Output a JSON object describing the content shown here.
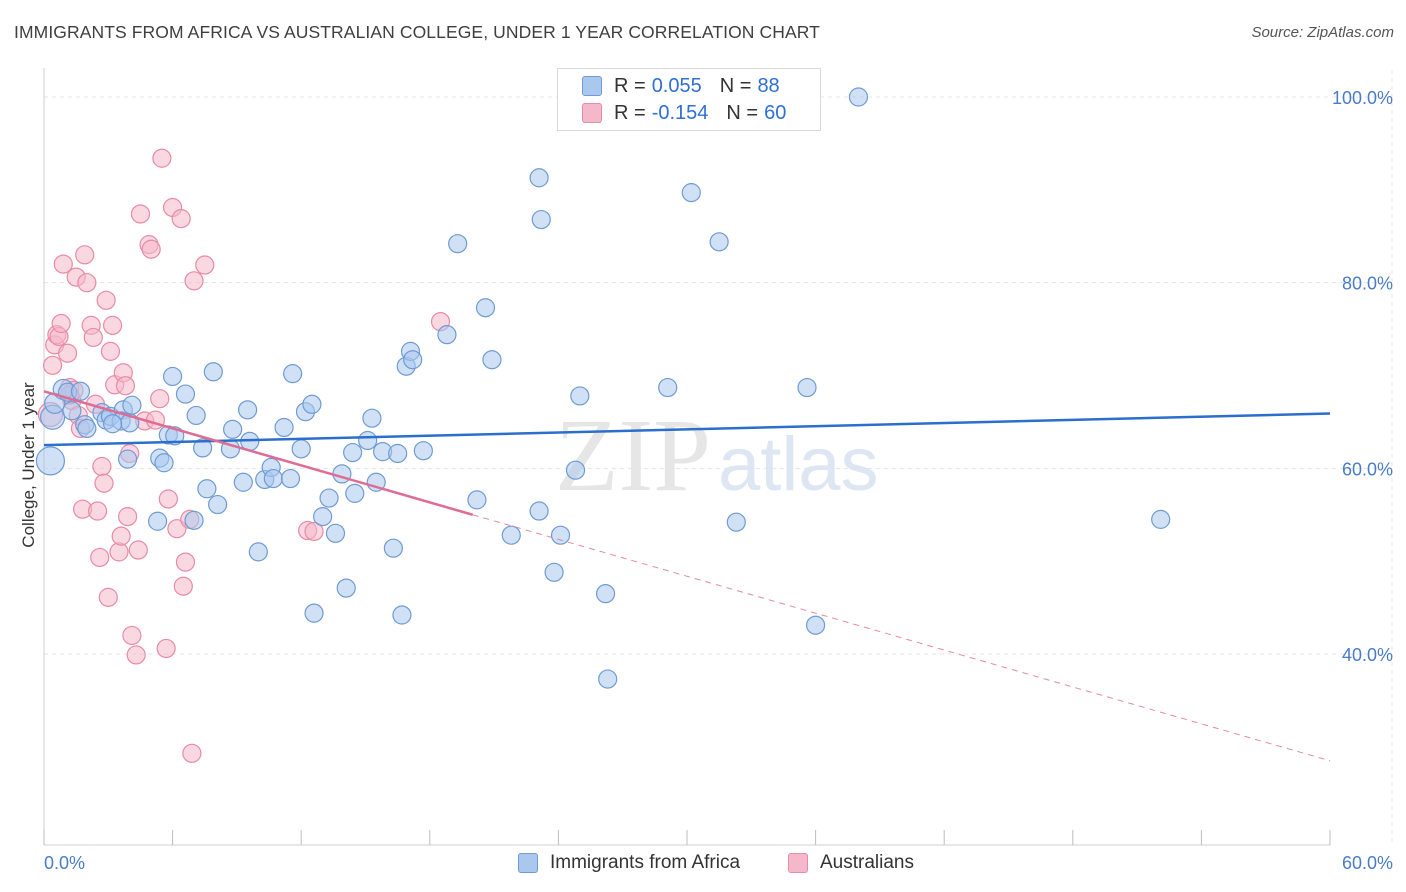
{
  "header": {
    "title": "IMMIGRANTS FROM AFRICA VS AUSTRALIAN COLLEGE, UNDER 1 YEAR CORRELATION CHART",
    "source": "Source: ZipAtlas.com"
  },
  "watermark": {
    "text_zip": "ZIP",
    "text_atlas": "atlas"
  },
  "legend": {
    "rows": [
      {
        "r_label": "R =",
        "r_value": "0.055",
        "n_label": "N =",
        "n_value": "88"
      },
      {
        "r_label": "R =",
        "r_value": "-0.154",
        "n_label": "N =",
        "n_value": "60"
      }
    ]
  },
  "colors": {
    "blue_fill": "#aac8ee",
    "blue_stroke": "#6f9bd4",
    "blue_line": "#2b6fcc",
    "pink_fill": "#f5b8cb",
    "pink_stroke": "#e88aa8",
    "pink_line": "#e06b93",
    "tick_text": "#4a7cc9",
    "grid": "#e4e4e4"
  },
  "chart_data": {
    "type": "scatter",
    "title": "IMMIGRANTS FROM AFRICA VS AUSTRALIAN COLLEGE, UNDER 1 YEAR CORRELATION CHART",
    "xlabel": "",
    "ylabel": "College, Under 1 year",
    "xlim": [
      0,
      60
    ],
    "ylim": [
      20,
      102
    ],
    "x_tick_labels": [
      "0.0%",
      "60.0%"
    ],
    "y_ticks": [
      40,
      60,
      80,
      100
    ],
    "y_tick_labels": [
      "40.0%",
      "60.0%",
      "80.0%",
      "100.0%"
    ],
    "grid": "horizontal dashed",
    "legend_position": "bottom-center",
    "series": [
      {
        "name": "Immigrants from Africa",
        "color": "#aac8ee",
        "trend": {
          "x": [
            0,
            60
          ],
          "y": [
            62.5,
            65.9
          ],
          "style": "solid"
        },
        "points": [
          [
            0.3,
            60.8,
            14
          ],
          [
            0.4,
            65.5,
            12
          ],
          [
            0.5,
            67.0,
            10
          ],
          [
            0.9,
            68.5,
            10
          ],
          [
            1.1,
            68.2,
            9
          ],
          [
            1.3,
            66.2,
            9
          ],
          [
            1.7,
            68.3,
            9
          ],
          [
            1.9,
            64.7,
            9
          ],
          [
            2.7,
            66.0,
            9
          ],
          [
            2.9,
            65.2,
            9
          ],
          [
            3.1,
            65.6,
            9
          ],
          [
            3.7,
            66.3,
            9
          ],
          [
            3.6,
            65.1,
            9
          ],
          [
            4.0,
            64.9,
            9
          ],
          [
            3.9,
            61.0,
            9
          ],
          [
            5.4,
            61.1,
            9
          ],
          [
            5.6,
            60.6,
            9
          ],
          [
            5.8,
            63.6,
            9
          ],
          [
            5.3,
            54.3,
            9
          ],
          [
            6.1,
            63.5,
            9
          ],
          [
            6.0,
            69.9,
            9
          ],
          [
            6.6,
            68.0,
            9
          ],
          [
            7.0,
            54.4,
            9
          ],
          [
            7.1,
            65.7,
            9
          ],
          [
            7.4,
            62.2,
            9
          ],
          [
            7.6,
            57.8,
            9
          ],
          [
            7.9,
            70.4,
            9
          ],
          [
            8.1,
            56.1,
            9
          ],
          [
            8.7,
            62.1,
            9
          ],
          [
            8.8,
            64.2,
            9
          ],
          [
            9.3,
            58.5,
            9
          ],
          [
            9.5,
            66.3,
            9
          ],
          [
            9.6,
            62.9,
            9
          ],
          [
            10.0,
            51.0,
            9
          ],
          [
            10.3,
            58.8,
            9
          ],
          [
            10.6,
            60.1,
            9
          ],
          [
            10.7,
            58.9,
            9
          ],
          [
            11.2,
            64.4,
            9
          ],
          [
            11.5,
            58.9,
            9
          ],
          [
            11.6,
            70.2,
            9
          ],
          [
            12.0,
            62.1,
            9
          ],
          [
            12.2,
            66.1,
            9
          ],
          [
            12.5,
            66.9,
            9
          ],
          [
            12.6,
            44.4,
            9
          ],
          [
            13.0,
            54.8,
            9
          ],
          [
            13.3,
            56.8,
            9
          ],
          [
            13.6,
            53.0,
            9
          ],
          [
            13.9,
            59.4,
            9
          ],
          [
            14.1,
            47.1,
            9
          ],
          [
            14.4,
            61.7,
            9
          ],
          [
            14.5,
            57.3,
            9
          ],
          [
            15.1,
            63.0,
            9
          ],
          [
            15.3,
            65.4,
            9
          ],
          [
            15.5,
            58.5,
            9
          ],
          [
            15.8,
            61.8,
            9
          ],
          [
            16.3,
            51.4,
            9
          ],
          [
            16.5,
            61.6,
            9
          ],
          [
            16.7,
            44.2,
            9
          ],
          [
            16.9,
            71.0,
            9
          ],
          [
            17.1,
            72.6,
            9
          ],
          [
            17.2,
            71.7,
            9
          ],
          [
            17.7,
            61.9,
            9
          ],
          [
            18.8,
            74.4,
            9
          ],
          [
            19.3,
            84.2,
            9
          ],
          [
            20.2,
            56.6,
            9
          ],
          [
            20.6,
            77.3,
            9
          ],
          [
            20.9,
            71.7,
            9
          ],
          [
            21.8,
            52.8,
            9
          ],
          [
            23.1,
            91.3,
            9
          ],
          [
            23.2,
            86.8,
            9
          ],
          [
            23.1,
            55.4,
            9
          ],
          [
            23.8,
            48.8,
            9
          ],
          [
            24.1,
            52.8,
            9
          ],
          [
            24.8,
            59.8,
            9
          ],
          [
            25.0,
            67.8,
            9
          ],
          [
            26.2,
            46.5,
            9
          ],
          [
            26.3,
            37.3,
            9
          ],
          [
            29.1,
            68.7,
            9
          ],
          [
            30.2,
            89.7,
            9
          ],
          [
            31.5,
            84.4,
            9
          ],
          [
            32.3,
            54.2,
            9
          ],
          [
            35.6,
            68.7,
            9
          ],
          [
            36.0,
            43.1,
            9
          ],
          [
            38.0,
            100.0,
            9
          ],
          [
            52.1,
            54.5,
            9
          ],
          [
            3.2,
            64.8,
            9
          ],
          [
            4.1,
            66.8,
            9
          ],
          [
            2.0,
            64.3,
            9
          ]
        ]
      },
      {
        "name": "Australians",
        "color": "#f5b8cb",
        "trend": {
          "x": [
            0,
            20
          ],
          "y": [
            68.3,
            55.0
          ],
          "style": "solid",
          "extension": {
            "x": [
              20,
              60
            ],
            "y": [
              55.0,
              28.5
            ],
            "style": "dashed"
          }
        },
        "points": [
          [
            0.3,
            65.8,
            12
          ],
          [
            0.4,
            71.1,
            9
          ],
          [
            0.5,
            73.3,
            9
          ],
          [
            0.6,
            74.4,
            9
          ],
          [
            0.7,
            74.2,
            9
          ],
          [
            0.8,
            75.6,
            9
          ],
          [
            0.9,
            82.0,
            9
          ],
          [
            1.1,
            72.4,
            9
          ],
          [
            1.2,
            68.7,
            9
          ],
          [
            1.3,
            67.3,
            9
          ],
          [
            1.4,
            68.4,
            9
          ],
          [
            1.5,
            80.6,
            9
          ],
          [
            1.6,
            65.7,
            9
          ],
          [
            1.7,
            64.3,
            9
          ],
          [
            1.8,
            55.6,
            9
          ],
          [
            1.9,
            83.0,
            9
          ],
          [
            2.0,
            80.0,
            9
          ],
          [
            2.2,
            75.4,
            9
          ],
          [
            2.3,
            74.1,
            9
          ],
          [
            2.4,
            66.9,
            9
          ],
          [
            2.5,
            55.4,
            9
          ],
          [
            2.6,
            50.4,
            9
          ],
          [
            2.7,
            60.2,
            9
          ],
          [
            2.8,
            58.4,
            9
          ],
          [
            2.9,
            78.1,
            9
          ],
          [
            3.0,
            46.1,
            9
          ],
          [
            3.1,
            72.6,
            9
          ],
          [
            3.2,
            75.4,
            9
          ],
          [
            3.3,
            69.0,
            9
          ],
          [
            3.5,
            51.0,
            9
          ],
          [
            3.6,
            52.7,
            9
          ],
          [
            3.7,
            70.3,
            9
          ],
          [
            3.8,
            68.9,
            9
          ],
          [
            3.9,
            54.8,
            9
          ],
          [
            4.0,
            61.6,
            9
          ],
          [
            4.1,
            42.0,
            9
          ],
          [
            4.3,
            39.9,
            9
          ],
          [
            4.4,
            51.2,
            9
          ],
          [
            4.5,
            87.4,
            9
          ],
          [
            4.7,
            65.1,
            9
          ],
          [
            4.9,
            84.1,
            9
          ],
          [
            5.0,
            83.6,
            9
          ],
          [
            5.2,
            65.2,
            9
          ],
          [
            5.4,
            67.5,
            9
          ],
          [
            5.5,
            93.4,
            9
          ],
          [
            5.7,
            40.6,
            9
          ],
          [
            5.8,
            56.7,
            9
          ],
          [
            6.0,
            88.1,
            9
          ],
          [
            6.2,
            53.5,
            9
          ],
          [
            6.4,
            86.9,
            9
          ],
          [
            6.5,
            47.3,
            9
          ],
          [
            6.6,
            49.9,
            9
          ],
          [
            6.8,
            54.5,
            9
          ],
          [
            7.0,
            80.2,
            9
          ],
          [
            6.9,
            29.3,
            9
          ],
          [
            7.5,
            81.9,
            9
          ],
          [
            12.3,
            53.3,
            9
          ],
          [
            12.6,
            53.2,
            9
          ],
          [
            18.5,
            75.8,
            9
          ],
          [
            1.2,
            67.9,
            9
          ]
        ]
      }
    ]
  },
  "bottom_legend": {
    "items": [
      {
        "label": "Immigrants from Africa"
      },
      {
        "label": "Australians"
      }
    ]
  }
}
